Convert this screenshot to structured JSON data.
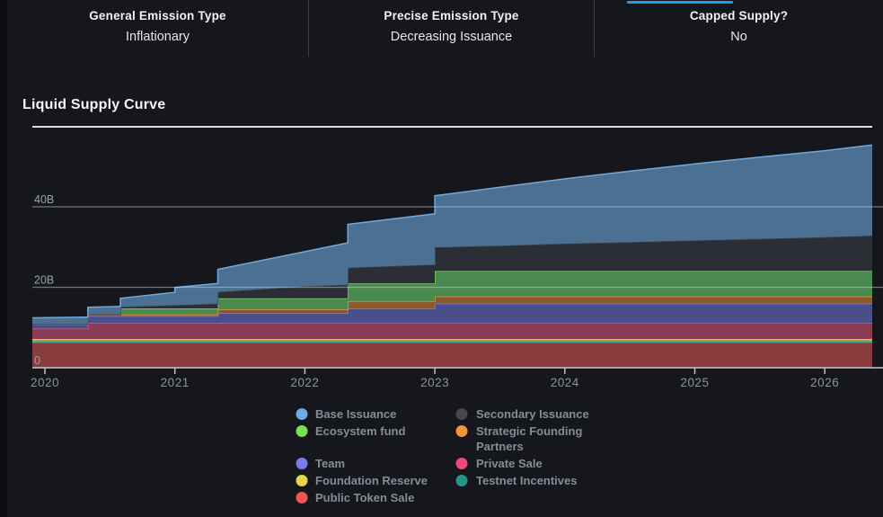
{
  "header": {
    "accent_color": "#1f9bf2",
    "columns": [
      {
        "label": "General Emission Type",
        "value": "Inflationary"
      },
      {
        "label": "Precise Emission Type",
        "value": "Decreasing Issuance"
      },
      {
        "label": "Capped Supply?",
        "value": "No"
      }
    ]
  },
  "section": {
    "title": "Liquid Supply Curve"
  },
  "chart_data": {
    "type": "area",
    "stacked": true,
    "title": "Liquid Supply Curve",
    "unit": "billions of tokens",
    "x_range": [
      2019.903,
      2026.365
    ],
    "x_ticks": [
      2020,
      2021,
      2022,
      2023,
      2024,
      2025,
      2026
    ],
    "y_gridlines": [
      {
        "value": 0,
        "label": "0"
      },
      {
        "value": 20,
        "label": "20B"
      },
      {
        "value": 40,
        "label": "40B"
      }
    ],
    "grid": true,
    "legend_position": "bottom",
    "t": [
      2019.903,
      2020.33,
      2020.33,
      2020.58,
      2020.58,
      2021.0,
      2021.0,
      2021.33,
      2021.33,
      2022.0,
      2022.33,
      2022.33,
      2023.0,
      2023.0,
      2023.5,
      2024.0,
      2024.5,
      2025.0,
      2025.5,
      2026.0,
      2026.365
    ],
    "series": [
      {
        "id": "public-token-sale",
        "name": "Public Token Sale",
        "fill": "#8a3b3e",
        "stroke": "#c65555",
        "values": [
          6.2,
          6.2,
          6.2,
          6.2,
          6.2,
          6.2,
          6.2,
          6.2,
          6.2,
          6.2,
          6.2,
          6.2,
          6.2,
          6.2,
          6.2,
          6.2,
          6.2,
          6.2,
          6.2,
          6.2,
          6.2
        ]
      },
      {
        "id": "testnet-incentives",
        "name": "Testnet Incentives",
        "fill": "#1e6f69",
        "stroke": "#2ba49b",
        "values": [
          0.25,
          0.25,
          0.25,
          0.25,
          0.25,
          0.25,
          0.25,
          0.25,
          0.25,
          0.25,
          0.25,
          0.25,
          0.25,
          0.25,
          0.25,
          0.25,
          0.25,
          0.25,
          0.25,
          0.25,
          0.25
        ]
      },
      {
        "id": "foundation-reserve",
        "name": "Foundation Reserve",
        "fill": "#a99c3f",
        "stroke": "#e6d64c",
        "values": [
          0.7,
          0.7,
          0.7,
          0.7,
          0.7,
          0.7,
          0.7,
          0.7,
          0.7,
          0.7,
          0.7,
          0.7,
          0.7,
          0.7,
          0.7,
          0.7,
          0.7,
          0.7,
          0.7,
          0.7,
          0.7
        ]
      },
      {
        "id": "private-sale",
        "name": "Private Sale",
        "fill": "#8c3b55",
        "stroke": "#ef4a7b",
        "values": [
          2.6,
          2.6,
          4.0,
          4.0,
          4.0,
          4.0,
          4.0,
          4.0,
          4.0,
          4.0,
          4.0,
          4.0,
          4.0,
          4.0,
          4.0,
          4.0,
          4.0,
          4.0,
          4.0,
          4.0,
          4.0
        ]
      },
      {
        "id": "team",
        "name": "Team",
        "fill": "#4a4e89",
        "stroke": "#7c80e2",
        "values": [
          1.1,
          1.1,
          1.7,
          1.7,
          1.7,
          1.7,
          1.7,
          1.7,
          2.4,
          2.4,
          2.4,
          3.6,
          3.6,
          4.8,
          4.8,
          4.8,
          4.8,
          4.8,
          4.8,
          4.8,
          4.8
        ]
      },
      {
        "id": "strategic-founding-partners",
        "name": "Strategic Founding Partners",
        "fill": "#8a5a2c",
        "stroke": "#ef923c",
        "values": [
          0,
          0,
          0.4,
          0.4,
          0.4,
          0.4,
          0.4,
          0.4,
          0.9,
          0.9,
          0.9,
          1.8,
          1.8,
          1.8,
          1.8,
          1.8,
          1.8,
          1.8,
          1.8,
          1.8,
          1.8
        ]
      },
      {
        "id": "ecosystem-fund",
        "name": "Ecosystem fund",
        "fill": "#4b8a4e",
        "stroke": "#76d74f",
        "values": [
          0,
          0,
          0,
          0,
          1.5,
          1.5,
          1.5,
          1.5,
          2.8,
          2.8,
          2.8,
          4.4,
          4.4,
          6.3,
          6.3,
          6.3,
          6.3,
          6.3,
          6.3,
          6.3,
          6.3
        ]
      },
      {
        "id": "secondary-issuance",
        "name": "Secondary Issuance",
        "fill": "#2b2e35",
        "stroke": "#40454d",
        "values": [
          0,
          0,
          0,
          0,
          0.4,
          0.8,
          0.8,
          1.2,
          1.6,
          3.0,
          3.4,
          3.9,
          4.7,
          5.9,
          6.3,
          6.8,
          7.2,
          7.6,
          8.0,
          8.4,
          8.8
        ]
      },
      {
        "id": "base-issuance",
        "name": "Base Issuance",
        "fill": "#4b7092",
        "stroke": "#6fa9dd",
        "values": [
          1.55,
          1.75,
          1.8,
          2.0,
          2.1,
          3.2,
          4.4,
          5.0,
          5.6,
          8.6,
          10.4,
          10.8,
          12.6,
          12.8,
          14.5,
          16.1,
          17.6,
          19.0,
          20.3,
          21.5,
          22.5
        ]
      }
    ]
  },
  "legend": {
    "items": [
      {
        "id": "base-issuance",
        "label": "Base Issuance",
        "color": "#6cabe2"
      },
      {
        "id": "secondary-issuance",
        "label": "Secondary Issuance",
        "color": "#45484e"
      },
      {
        "id": "ecosystem-fund",
        "label": "Ecosystem fund",
        "color": "#7add52"
      },
      {
        "id": "strategic-founding-partners",
        "label": "Strategic Founding Partners",
        "color": "#f4923d"
      },
      {
        "id": "team",
        "label": "Team",
        "color": "#7a7de8"
      },
      {
        "id": "private-sale",
        "label": "Private Sale",
        "color": "#f2477a"
      },
      {
        "id": "foundation-reserve",
        "label": "Foundation Reserve",
        "color": "#e6d54b"
      },
      {
        "id": "testnet-incentives",
        "label": "Testnet Incentives",
        "color": "#27948c"
      },
      {
        "id": "public-token-sale",
        "label": "Public Token Sale",
        "color": "#f1564f"
      }
    ]
  }
}
